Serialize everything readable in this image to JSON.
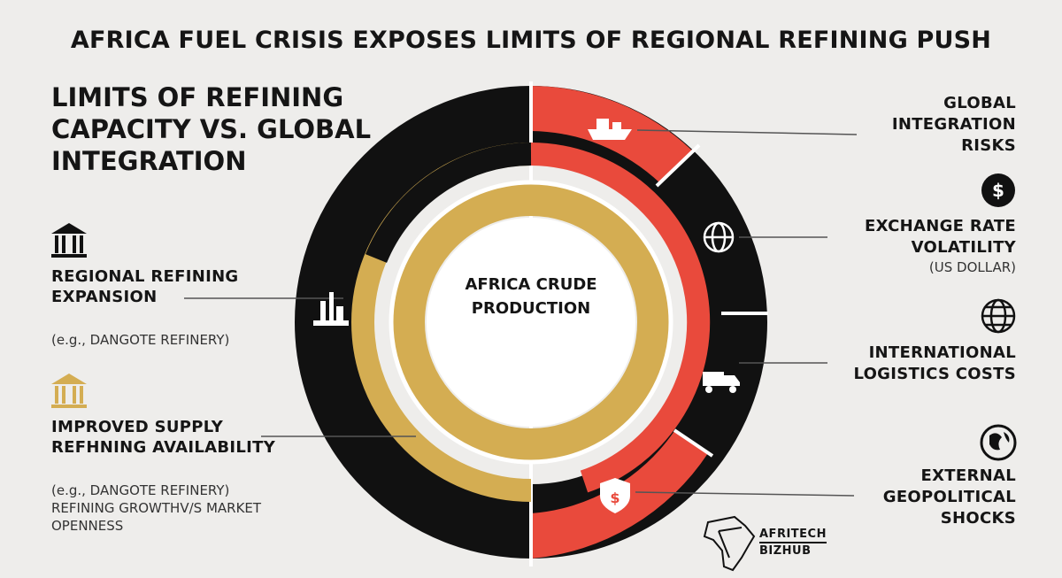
{
  "title": "AFRICA FUEL CRISIS EXPOSES LIMITS OF REGIONAL REFINING PUSH",
  "section_title": "LIMITS OF REFINING CAPACITY VS. GLOBAL INTEGRATION",
  "center_label": "AFRICA CRUDE PRODUCTION",
  "left_items": [
    {
      "label": "REGIONAL REFINING EXPANSION",
      "note": "(e.g., DANGOTE REFINERY)",
      "icon": "bank-icon"
    },
    {
      "label": "IMPROVED SUPPLY REFHNING AVAILABILITY",
      "note": "(e.g., DANGOTE REFINERY) REFINING GROWTHV/S MARKET OPENNESS",
      "icon": "bank-icon"
    }
  ],
  "right_items": [
    {
      "label": "GLOBAL INTEGRATION RISKS",
      "note": "",
      "icon": "ship-icon"
    },
    {
      "label": "EXCHANGE RATE VOLATILITY",
      "note": "(US DOLLAR)",
      "icon": "dollar-icon"
    },
    {
      "label": "INTERNATIONAL LOGISTICS COSTS",
      "note": "",
      "icon": "globe-icon"
    },
    {
      "label": "EXTERNAL GEOPOLITICAL SHOCKS",
      "note": "",
      "icon": "earth-icon"
    }
  ],
  "brand": {
    "line1": "AFRITECH",
    "line2": "BIZHUB"
  },
  "colors": {
    "black": "#111111",
    "red": "#e94a3c",
    "gold": "#d4ad52",
    "background": "#eeedeb"
  }
}
